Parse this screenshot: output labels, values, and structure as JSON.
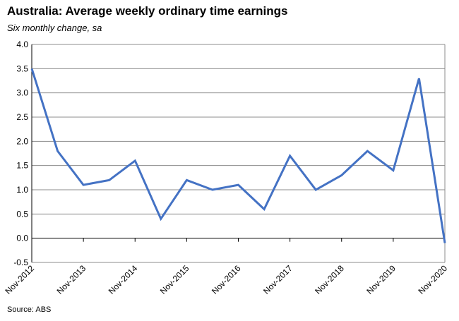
{
  "chart_data": {
    "type": "line",
    "title": "Australia: Average weekly ordinary time earnings",
    "subtitle": "Six monthly change, sa",
    "source": "Source: ABS",
    "xlabel": "",
    "ylabel": "",
    "ylim": [
      -0.5,
      4.0
    ],
    "y_ticks": [
      "4.0",
      "3.5",
      "3.0",
      "2.5",
      "2.0",
      "1.5",
      "1.0",
      "0.5",
      "0.0",
      "-0.5"
    ],
    "x_tick_labels": [
      "Nov-2012",
      "Nov-2013",
      "Nov-2014",
      "Nov-2015",
      "Nov-2016",
      "Nov-2017",
      "Nov-2018",
      "Nov-2019",
      "Nov-2020"
    ],
    "grid": true,
    "legend": "none",
    "series": [
      {
        "color": "#4472C4",
        "x": [
          "Nov-2012",
          "May-2013",
          "Nov-2013",
          "May-2014",
          "Nov-2014",
          "May-2015",
          "Nov-2015",
          "May-2016",
          "Nov-2016",
          "May-2017",
          "Nov-2017",
          "May-2018",
          "Nov-2018",
          "May-2019",
          "Nov-2019",
          "May-2020",
          "Nov-2020"
        ],
        "values": [
          3.5,
          1.8,
          1.1,
          1.2,
          1.6,
          0.4,
          1.2,
          1.0,
          1.1,
          0.6,
          1.7,
          1.0,
          1.3,
          1.8,
          1.4,
          3.3,
          -0.1
        ]
      }
    ]
  }
}
